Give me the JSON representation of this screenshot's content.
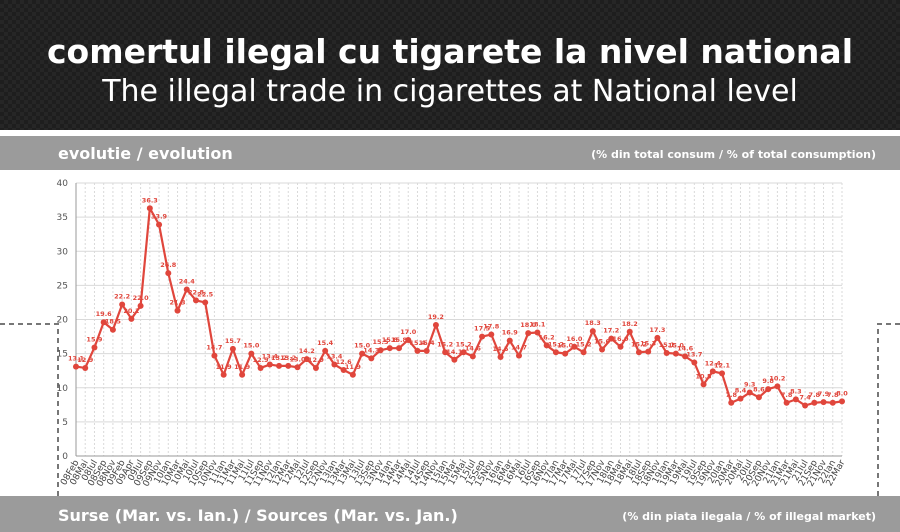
{
  "header": {
    "title_ro": "comertul ilegal cu tigarete la nivel national",
    "title_en": "The illegal trade in cigarettes at National level"
  },
  "section": {
    "label": "evolutie / evolution",
    "unit": "(% din total consum / % of total consumption)"
  },
  "footer": {
    "sources": "Surse (Mar. vs. Ian.) / Sources (Mar. vs. Jan.)",
    "unit": "(% din piata ilegala / % of illegal market)"
  },
  "colors": {
    "line": "#e0463c",
    "grid": "#d9d9d9",
    "band": "#9b9b9b"
  },
  "chart_data": {
    "type": "line",
    "title": "",
    "xlabel": "",
    "ylabel": "",
    "ylim": [
      0,
      40
    ],
    "yticks": [
      0,
      5,
      10,
      15,
      20,
      25,
      30,
      35,
      40
    ],
    "grid": true,
    "legend": "none",
    "x": [
      "08Feb",
      "08Mai",
      "08Iul",
      "08Sep",
      "08Nov",
      "09Feb",
      "09Apr",
      "09Iul",
      "09Sep",
      "09Nov",
      "10Ian",
      "10Mar",
      "10Mai",
      "10Iul",
      "10Sep",
      "10Nov",
      "11Ian",
      "11Mar",
      "11Mai",
      "11Iul",
      "11Sep",
      "11Nov",
      "12Ian",
      "12Mar",
      "12Mai",
      "12Iul",
      "12Sep",
      "12Nov",
      "13Ian",
      "13Mar",
      "13Mai",
      "13Iul",
      "13Sep",
      "13Nov",
      "14Ian",
      "14Mar",
      "14Mai",
      "14Iul",
      "14Sep",
      "14Nov",
      "15Ian",
      "15Mar",
      "15Mai",
      "15Iul",
      "15Sep",
      "15Nov",
      "16Ian",
      "16Mar",
      "16Mai",
      "16Iul",
      "16Sep",
      "16Nov",
      "17Ian",
      "17Mar",
      "17Mai",
      "17Iul",
      "17Sep",
      "17Nov",
      "18Ian",
      "18Mar",
      "18Mai",
      "18Iul",
      "18Sep",
      "18Nov",
      "19Ian",
      "19Mar",
      "19Mai",
      "19Iul",
      "19Sep",
      "19Nov",
      "20Ian",
      "20Mar",
      "20Mai",
      "20Iul",
      "20Sep",
      "20Nov",
      "21Ian",
      "21Mar",
      "21Mai",
      "21Iul",
      "21Sep",
      "21Nov",
      "22Ian",
      "22Mar"
    ],
    "series": [
      {
        "name": "",
        "values": [
          13.1,
          12.9,
          15.9,
          19.6,
          18.5,
          22.2,
          20.1,
          22.0,
          36.3,
          33.9,
          26.8,
          21.3,
          24.4,
          22.8,
          22.5,
          14.7,
          11.9,
          15.7,
          11.9,
          15.0,
          12.9,
          13.4,
          13.2,
          13.2,
          13.0,
          14.2,
          12.9,
          15.4,
          13.4,
          12.6,
          11.9,
          15.0,
          14.3,
          15.5,
          15.8,
          15.8,
          17.0,
          15.4,
          15.4,
          19.2,
          15.2,
          14.1,
          15.2,
          14.6,
          17.5,
          17.8,
          14.5,
          16.9,
          14.7,
          18.0,
          18.1,
          16.2,
          15.2,
          15.0,
          16.0,
          15.2,
          18.3,
          15.6,
          17.2,
          16.0,
          18.2,
          15.2,
          15.3,
          17.3,
          15.1,
          15.0,
          14.6,
          13.7,
          10.5,
          12.4,
          12.1,
          7.8,
          8.4,
          9.3,
          8.6,
          9.8,
          10.2,
          7.8,
          8.3,
          7.4,
          7.8,
          7.9,
          7.8,
          8.0
        ],
        "data_labels": [
          "13.1",
          "12.9",
          "15.9",
          "19.6",
          "18.5",
          "22.2",
          "20.1",
          "22.0",
          "36.3",
          "33.9",
          "26.8",
          "21.3",
          "24.4",
          "22.8",
          "22.5",
          "14.7",
          "11.9",
          "15.7",
          "11.9",
          "15.0",
          "12.9",
          "13.4",
          "13.2",
          "13.2",
          "13.0",
          "14.2",
          "12.9",
          "15.4",
          "13.4",
          "12.6",
          "11.9",
          "15.0",
          "14.3",
          "15.5",
          "15.8",
          "15.8",
          "17.0",
          "15.4",
          "15.4",
          "19.2",
          "15.2",
          "14.1",
          "15.2",
          "14.6",
          "17.5",
          "17.8",
          "14.5",
          "16.9",
          "14.7",
          "18.0",
          "18.1",
          "16.2",
          "15.2",
          "15.0",
          "16.0",
          "15.2",
          "18.3",
          "15.6",
          "17.2",
          "16.0",
          "18.2",
          "15.2",
          "15.3",
          "17.3",
          "15.1",
          "15.0",
          "14.6",
          "13.7",
          "10.5",
          "12.4",
          "12.1",
          "7.8",
          "8.4",
          "9.3",
          "8.6",
          "9.8",
          "10.2",
          "7.8",
          "8.3",
          "7.4",
          "7.8",
          "7.9",
          "7.8",
          "8.0"
        ]
      }
    ]
  }
}
